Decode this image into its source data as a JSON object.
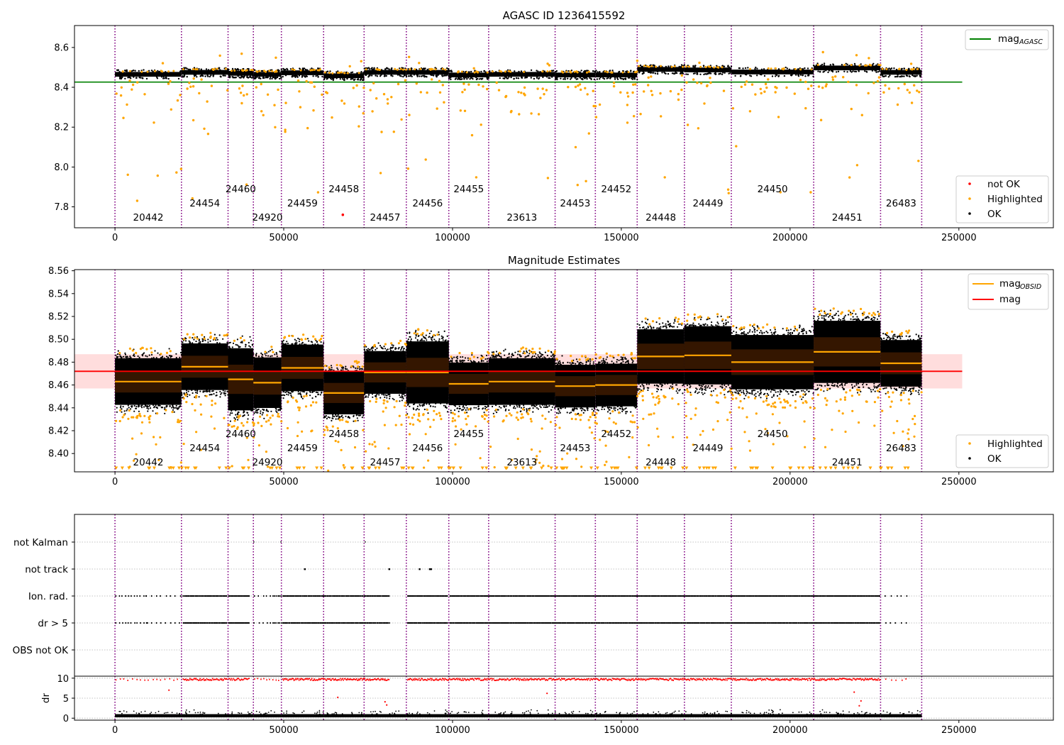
{
  "figure": {
    "top_title": "AGASC ID 1236415592",
    "mid_title": "Magnitude Estimates"
  },
  "colors": {
    "ok": "#000000",
    "highlighted": "#ffa500",
    "not_ok": "#ff0000",
    "agasc_line": "#008000",
    "mag_line": "#ff0000",
    "obsid_line": "#ffa500",
    "boundary": "#800080",
    "band": "#ffdddd"
  },
  "chart_data": [
    {
      "id": "top",
      "type": "scatter",
      "title": "AGASC ID 1236415592",
      "xlim": [
        -12000,
        278000
      ],
      "ylim": [
        7.695,
        8.71
      ],
      "xticks": [
        0,
        50000,
        100000,
        150000,
        200000,
        250000
      ],
      "yticks": [
        7.8,
        8.0,
        8.2,
        8.4,
        8.6
      ],
      "ytick_labels": [
        "7.8",
        "8.0",
        "8.2",
        "8.4",
        "8.6"
      ],
      "grid": false,
      "agasc_mag": 8.426,
      "agasc_line_xrange": [
        -12000,
        251000
      ],
      "legend_top": {
        "position": "upper right",
        "entries": [
          {
            "label": "mag",
            "sub": "AGASC",
            "kind": "line",
            "color": "#008000"
          }
        ]
      },
      "legend_bottom": {
        "position": "lower right",
        "entries": [
          {
            "label": "not OK",
            "kind": "dot",
            "color": "#ff0000"
          },
          {
            "label": "Highlighted",
            "kind": "dot",
            "color": "#ffa500"
          },
          {
            "label": "OK",
            "kind": "dot",
            "color": "#000000"
          }
        ]
      },
      "not_ok_points": [
        {
          "x": 67500,
          "y": 7.76
        }
      ]
    },
    {
      "id": "middle",
      "type": "scatter",
      "title": "Magnitude Estimates",
      "xlim": [
        -12000,
        278000
      ],
      "ylim": [
        8.384,
        8.561
      ],
      "xticks": [
        0,
        50000,
        100000,
        150000,
        200000,
        250000
      ],
      "yticks": [
        8.4,
        8.42,
        8.44,
        8.46,
        8.48,
        8.5,
        8.52,
        8.54,
        8.56
      ],
      "ytick_labels": [
        "8.40",
        "8.42",
        "8.44",
        "8.46",
        "8.48",
        "8.50",
        "8.52",
        "8.54",
        "8.56"
      ],
      "grid": false,
      "mag": 8.472,
      "mag_band": [
        8.457,
        8.487
      ],
      "mag_line_xrange": [
        -12000,
        251000
      ],
      "legend_top": {
        "position": "upper right",
        "entries": [
          {
            "label": "mag",
            "sub": "OBSID",
            "kind": "line",
            "color": "#ffa500"
          },
          {
            "label": "mag",
            "kind": "line",
            "color": "#ff0000"
          }
        ]
      },
      "legend_bottom": {
        "position": "lower right",
        "entries": [
          {
            "label": "Highlighted",
            "kind": "dot",
            "color": "#ffa500"
          },
          {
            "label": "OK",
            "kind": "dot",
            "color": "#000000"
          }
        ]
      }
    },
    {
      "id": "flags",
      "type": "scatter",
      "xlim": [
        -12000,
        278000
      ],
      "categories": [
        "not Kalman",
        "not track",
        "Ion. rad.",
        "dr > 5",
        "OBS not OK"
      ],
      "grid": true
    },
    {
      "id": "dr",
      "type": "scatter",
      "xlim": [
        -12000,
        278000
      ],
      "ylim": [
        -0.5,
        10.5
      ],
      "yticks": [
        0,
        5,
        10
      ],
      "ytick_labels": [
        "0",
        "5",
        "10"
      ],
      "ylabel": "dr",
      "xticks": [
        0,
        50000,
        100000,
        150000,
        200000,
        250000
      ],
      "xtick_labels": [
        "0",
        "50000",
        "100000",
        "150000",
        "200000",
        "250000"
      ],
      "grid": true
    }
  ],
  "observations": [
    {
      "obsid": "20442",
      "start": 0,
      "end": 19700,
      "top_level": 8.465,
      "mag_obsid": 8.463,
      "spread": 0.012,
      "label_row": 2
    },
    {
      "obsid": "24454",
      "start": 19700,
      "end": 33500,
      "top_level": 8.475,
      "mag_obsid": 8.476,
      "spread": 0.012,
      "label_row": 1
    },
    {
      "obsid": "24460",
      "start": 33500,
      "end": 41000,
      "top_level": 8.47,
      "mag_obsid": 8.465,
      "spread": 0.016,
      "label_row": 0
    },
    {
      "obsid": "24920",
      "start": 41000,
      "end": 49300,
      "top_level": 8.465,
      "mag_obsid": 8.462,
      "spread": 0.013,
      "label_row": 2
    },
    {
      "obsid": "24459",
      "start": 49300,
      "end": 61800,
      "top_level": 8.473,
      "mag_obsid": 8.475,
      "spread": 0.012,
      "label_row": 1
    },
    {
      "obsid": "24458",
      "start": 61800,
      "end": 73800,
      "top_level": 8.458,
      "mag_obsid": 8.453,
      "spread": 0.011,
      "label_row": 0
    },
    {
      "obsid": "24457",
      "start": 73800,
      "end": 86300,
      "top_level": 8.475,
      "mag_obsid": 8.471,
      "spread": 0.011,
      "label_row": 2
    },
    {
      "obsid": "24456",
      "start": 86300,
      "end": 98900,
      "top_level": 8.475,
      "mag_obsid": 8.471,
      "spread": 0.016,
      "label_row": 1
    },
    {
      "obsid": "24455",
      "start": 98900,
      "end": 110700,
      "top_level": 8.462,
      "mag_obsid": 8.461,
      "spread": 0.011,
      "label_row": 0
    },
    {
      "obsid": "23613",
      "start": 110700,
      "end": 130400,
      "top_level": 8.465,
      "mag_obsid": 8.463,
      "spread": 0.012,
      "label_row": 2
    },
    {
      "obsid": "24453",
      "start": 130400,
      "end": 142300,
      "top_level": 8.462,
      "mag_obsid": 8.459,
      "spread": 0.011,
      "label_row": 1
    },
    {
      "obsid": "24452",
      "start": 142300,
      "end": 154700,
      "top_level": 8.462,
      "mag_obsid": 8.46,
      "spread": 0.011,
      "label_row": 0
    },
    {
      "obsid": "24448",
      "start": 154700,
      "end": 168700,
      "top_level": 8.49,
      "mag_obsid": 8.485,
      "spread": 0.014,
      "label_row": 2
    },
    {
      "obsid": "24449",
      "start": 168700,
      "end": 182600,
      "top_level": 8.487,
      "mag_obsid": 8.486,
      "spread": 0.015,
      "label_row": 1
    },
    {
      "obsid": "24450",
      "start": 182600,
      "end": 207000,
      "top_level": 8.477,
      "mag_obsid": 8.48,
      "spread": 0.014,
      "label_row": 0
    },
    {
      "obsid": "24451",
      "start": 207000,
      "end": 226800,
      "top_level": 8.497,
      "mag_obsid": 8.489,
      "spread": 0.016,
      "label_row": 2
    },
    {
      "obsid": "26483",
      "start": 226800,
      "end": 239000,
      "top_level": 8.475,
      "mag_obsid": 8.479,
      "spread": 0.012,
      "label_row": 1
    }
  ]
}
